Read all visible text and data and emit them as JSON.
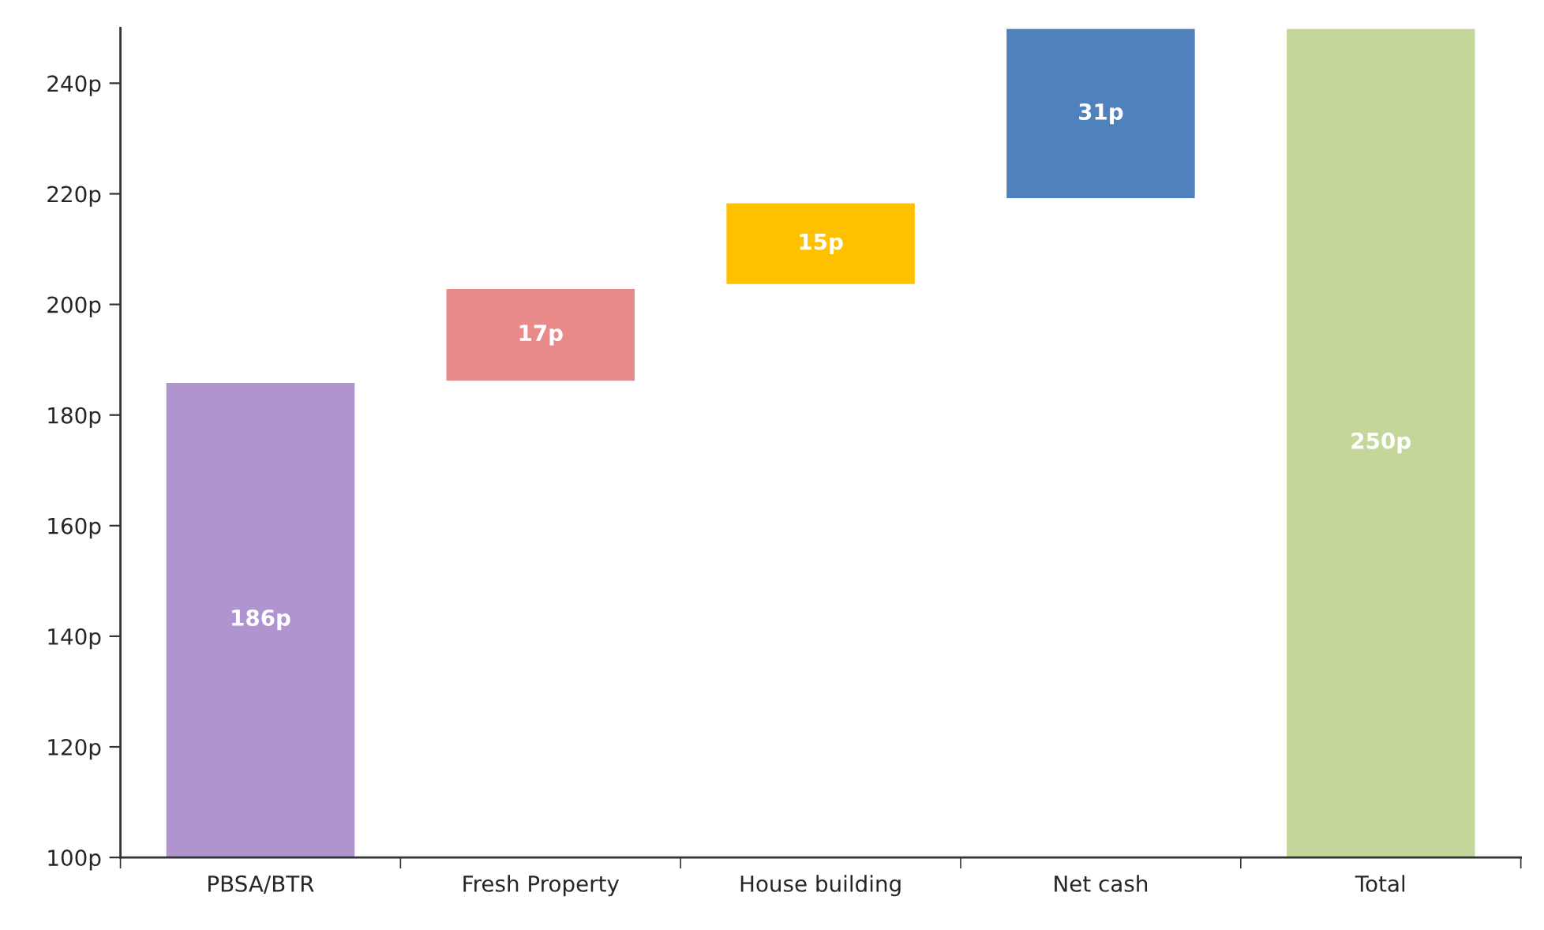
{
  "chart_data": {
    "type": "bar",
    "categories": [
      "PBSA/BTR",
      "Fresh Property",
      "House building",
      "Net cash",
      "Total"
    ],
    "values": [
      186,
      17,
      15,
      31,
      250
    ],
    "base": [
      0,
      186,
      203.5,
      219,
      0
    ],
    "colors": [
      "#b094d0",
      "#e88a89",
      "#ffc000",
      "#4f81bd",
      "#c4d79b"
    ],
    "value_labels": [
      "186p",
      "17p",
      "15p",
      "31p",
      "250p"
    ],
    "ylim": [
      100,
      250
    ],
    "yticks": [
      {
        "value": 100,
        "label": "100p"
      },
      {
        "value": 120,
        "label": "120p"
      },
      {
        "value": 140,
        "label": "140p"
      },
      {
        "value": 160,
        "label": "160p"
      },
      {
        "value": 180,
        "label": "180p"
      },
      {
        "value": 200,
        "label": "200p"
      },
      {
        "value": 220,
        "label": "220p"
      },
      {
        "value": 240,
        "label": "240p"
      }
    ],
    "grid": false,
    "legend": false
  }
}
